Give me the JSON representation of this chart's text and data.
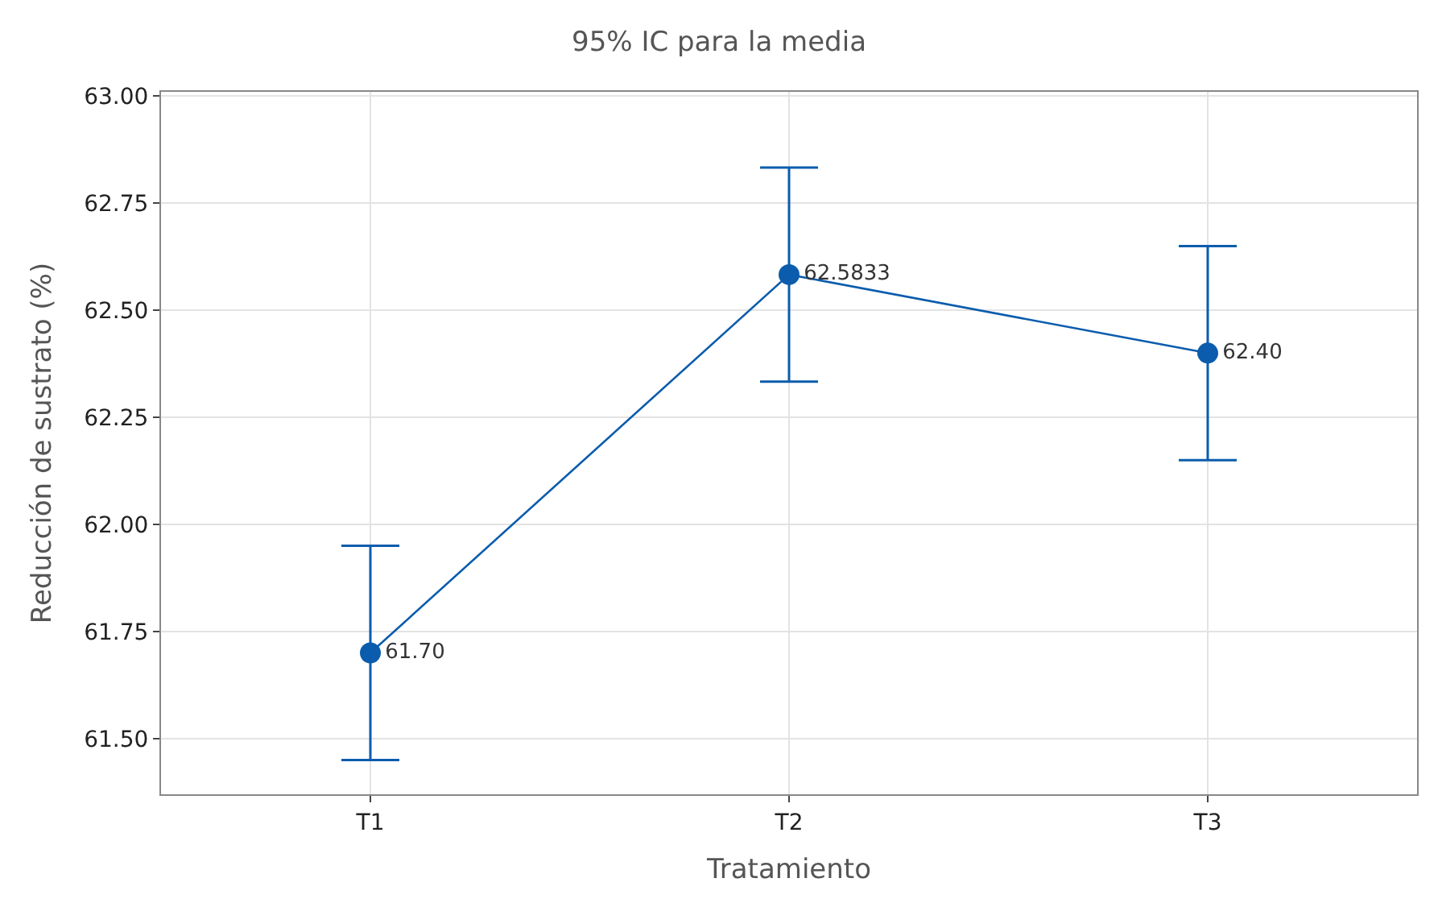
{
  "chart_data": {
    "type": "line",
    "title": "95% IC para la media",
    "xlabel": "Tratamiento",
    "ylabel": "Reducción de sustrato (%)",
    "categories": [
      "T1",
      "T2",
      "T3"
    ],
    "series": [
      {
        "color": "#0b5cad",
        "values": [
          61.7,
          62.5833,
          62.4
        ],
        "errors": [
          0.25,
          0.25,
          0.25
        ],
        "value_labels": [
          "61.70",
          "62.5833",
          "62.40"
        ]
      }
    ],
    "ylim": [
      61.37,
      63.01
    ],
    "yticks": [
      {
        "value": 61.5,
        "label": "61.50"
      },
      {
        "value": 61.75,
        "label": "61.75"
      },
      {
        "value": 62.0,
        "label": "62.00"
      },
      {
        "value": 62.25,
        "label": "62.25"
      },
      {
        "value": 62.5,
        "label": "62.50"
      },
      {
        "value": 62.75,
        "label": "62.75"
      },
      {
        "value": 63.0,
        "label": "63.00"
      }
    ],
    "grid": true,
    "marker": "circle",
    "line_style": "solid",
    "legend": false
  }
}
